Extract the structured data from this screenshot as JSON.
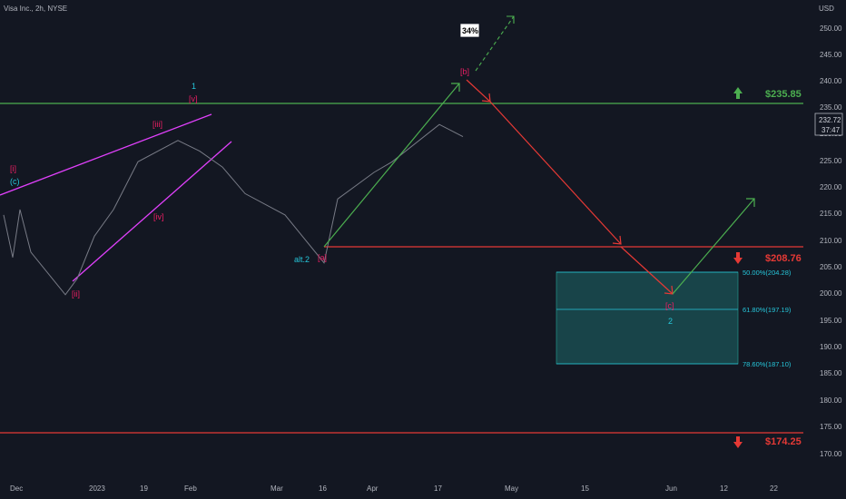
{
  "header": {
    "title": "Visa Inc., 2h, NYSE"
  },
  "price_axis": {
    "currency": "USD",
    "ticks": [
      "250.00",
      "245.00",
      "240.00",
      "235.00",
      "230.00",
      "225.00",
      "220.00",
      "215.00",
      "210.00",
      "205.00",
      "200.00",
      "195.00",
      "190.00",
      "185.00",
      "180.00",
      "175.00",
      "170.00"
    ],
    "current_price": "232.72",
    "countdown": "37:47"
  },
  "time_axis": {
    "ticks": [
      "Dec",
      "2023",
      "19",
      "Feb",
      "Mar",
      "16",
      "Apr",
      "17",
      "May",
      "15",
      "Jun",
      "12",
      "22"
    ]
  },
  "levels": [
    {
      "label": "$235.85",
      "price": 235.85,
      "color": "#4caf50",
      "arrow": "up"
    },
    {
      "label": "$208.76",
      "price": 208.76,
      "color": "#e53935",
      "arrow": "down"
    },
    {
      "label": "$174.25",
      "price": 174.25,
      "color": "#e53935",
      "arrow": "down"
    }
  ],
  "fib_zone": {
    "levels": [
      {
        "label": "50.00%(204.28)",
        "price": 204.28
      },
      {
        "label": "61.80%(197.19)",
        "price": 197.19
      },
      {
        "label": "78.60%(187.10)",
        "price": 187.1
      }
    ],
    "color": "#26a69a"
  },
  "wave_labels": [
    {
      "text": "[i]",
      "color": "#e91e63"
    },
    {
      "text": "(c)",
      "color": "#26c6da"
    },
    {
      "text": "[ii]",
      "color": "#e91e63"
    },
    {
      "text": "[iii]",
      "color": "#e91e63"
    },
    {
      "text": "[iv]",
      "color": "#e91e63"
    },
    {
      "text": "1",
      "color": "#26c6da"
    },
    {
      "text": "[v]",
      "color": "#e91e63"
    },
    {
      "text": "alt.2",
      "color": "#26c6da"
    },
    {
      "text": "[a]",
      "color": "#e91e63"
    },
    {
      "text": "[b]",
      "color": "#e91e63"
    },
    {
      "text": "[c]",
      "color": "#e91e63"
    },
    {
      "text": "2",
      "color": "#26c6da"
    }
  ],
  "annotation": {
    "text": "34%"
  },
  "chart_data": {
    "type": "line",
    "title": "Visa Inc., 2h, NYSE",
    "ylim": [
      168,
      255
    ],
    "price_path": [
      [
        "Dec",
        218
      ],
      [
        "Dec",
        210
      ],
      [
        "Dec",
        219
      ],
      [
        "Dec",
        211
      ],
      [
        "2023",
        203
      ],
      [
        "2023",
        206
      ],
      [
        "2023",
        214
      ],
      [
        "19",
        219
      ],
      [
        "19",
        228
      ],
      [
        "Feb",
        232
      ],
      [
        "Feb",
        230
      ],
      [
        "Feb",
        227
      ],
      [
        "Mar",
        222
      ],
      [
        "Mar",
        218
      ],
      [
        "16",
        209
      ],
      [
        "16",
        221
      ],
      [
        "Apr",
        226
      ],
      [
        "Apr",
        228
      ],
      [
        "17",
        235
      ],
      [
        "17",
        232.72
      ]
    ],
    "projection": [
      [
        "[b]",
        240
      ],
      [
        "[c]",
        200
      ],
      [
        "Jun",
        218
      ]
    ]
  }
}
